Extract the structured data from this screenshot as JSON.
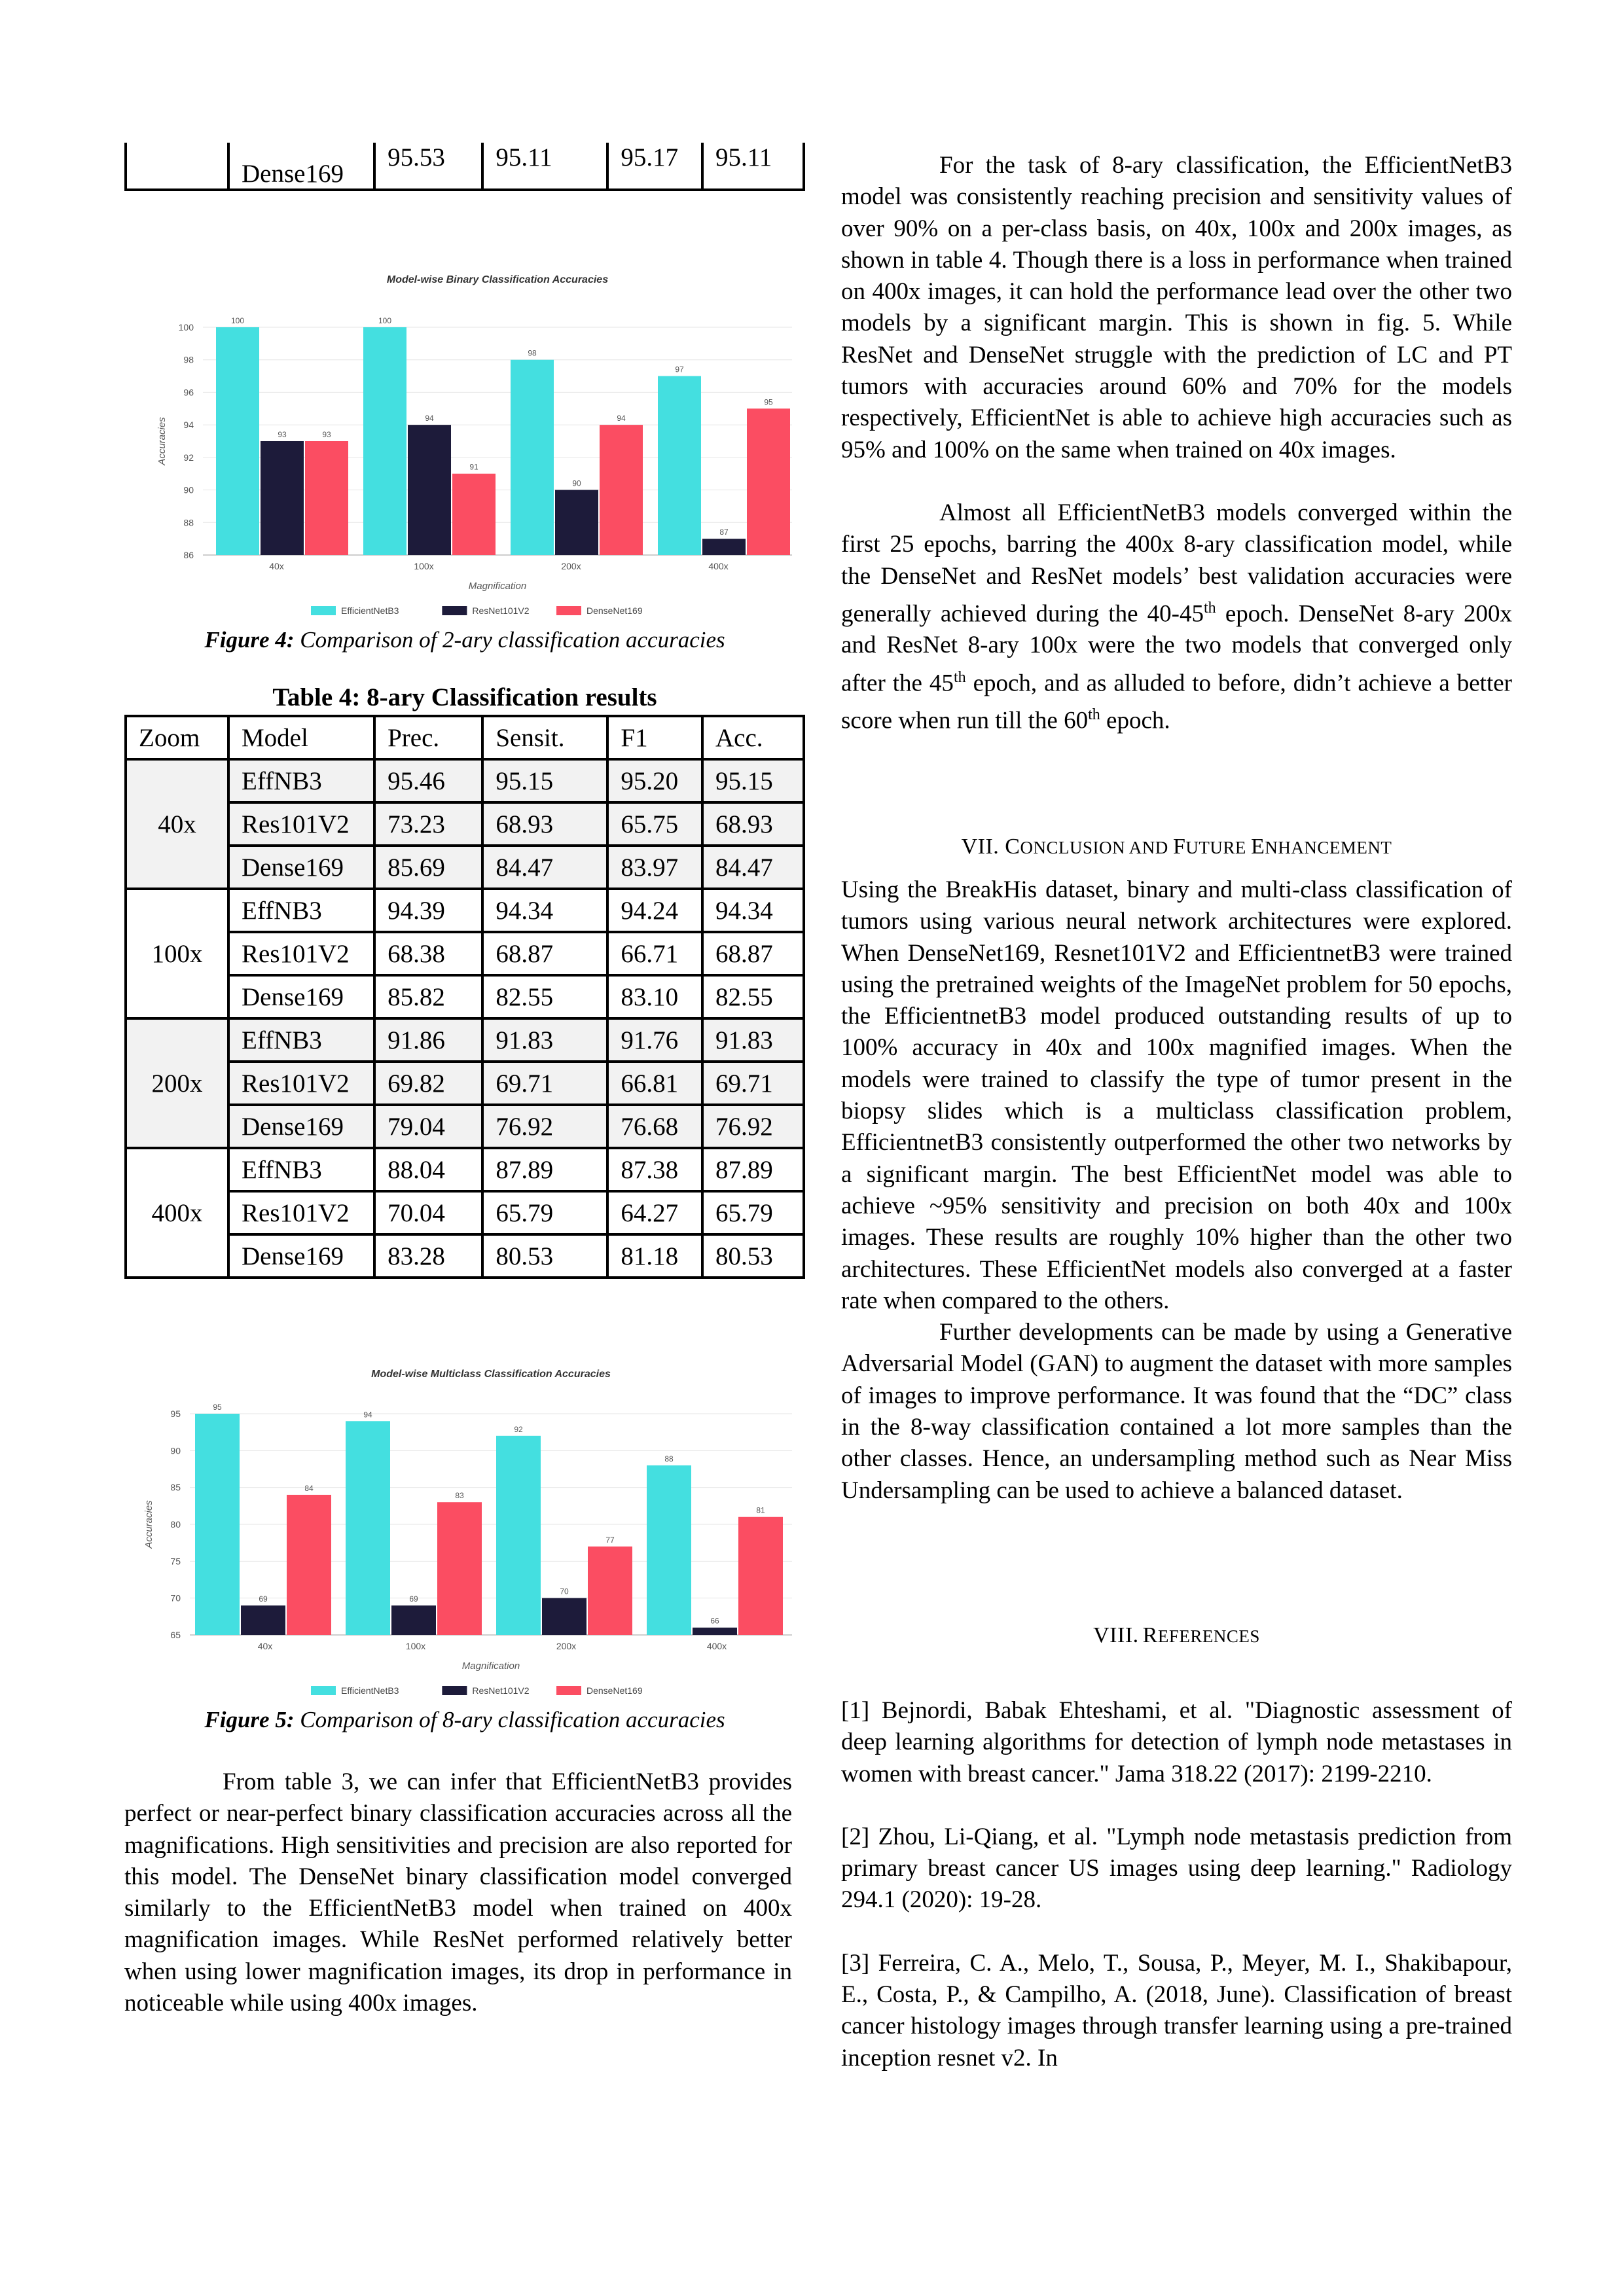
{
  "top_table_row": {
    "model": "Dense169",
    "prec": "95.53",
    "sens": "95.11",
    "f1": "95.17",
    "acc": "95.11"
  },
  "fig4_caption": {
    "label": "Figure 4:",
    "text": " Comparison of 2-ary classification accuracies"
  },
  "table4": {
    "title": "Table 4: 8-ary Classification results",
    "headers": [
      "Zoom",
      "Model",
      "Prec.",
      "Sensit.",
      "F1",
      "Acc."
    ],
    "groups": [
      {
        "zoom": "40x",
        "rows": [
          [
            "EffNB3",
            "95.46",
            "95.15",
            "95.20",
            "95.15"
          ],
          [
            "Res101V2",
            "73.23",
            "68.93",
            "65.75",
            "68.93"
          ],
          [
            "Dense169",
            "85.69",
            "84.47",
            "83.97",
            "84.47"
          ]
        ]
      },
      {
        "zoom": "100x",
        "rows": [
          [
            "EffNB3",
            "94.39",
            "94.34",
            "94.24",
            "94.34"
          ],
          [
            "Res101V2",
            "68.38",
            "68.87",
            "66.71",
            "68.87"
          ],
          [
            "Dense169",
            "85.82",
            "82.55",
            "83.10",
            "82.55"
          ]
        ]
      },
      {
        "zoom": "200x",
        "rows": [
          [
            "EffNB3",
            "91.86",
            "91.83",
            "91.76",
            "91.83"
          ],
          [
            "Res101V2",
            "69.82",
            "69.71",
            "66.81",
            "69.71"
          ],
          [
            "Dense169",
            "79.04",
            "76.92",
            "76.68",
            "76.92"
          ]
        ]
      },
      {
        "zoom": "400x",
        "rows": [
          [
            "EffNB3",
            "88.04",
            "87.89",
            "87.38",
            "87.89"
          ],
          [
            "Res101V2",
            "70.04",
            "65.79",
            "64.27",
            "65.79"
          ],
          [
            "Dense169",
            "83.28",
            "80.53",
            "81.18",
            "80.53"
          ]
        ]
      }
    ]
  },
  "fig5_caption": {
    "label": "Figure 5:",
    "text": " Comparison of 8-ary classification accuracies"
  },
  "left_paragraph": "From table 3, we can infer that EfficientNetB3 provides perfect or near-perfect binary classification accuracies across all the magnifications. High sensitivities and precision are also reported for this model. The DenseNet binary classification model converged similarly to the EfficientNetB3 model when trained on 400x magnification images. While ResNet performed relatively better when using lower magnification images, its drop in performance in noticeable while using 400x images.",
  "right_paragraphs": {
    "p1": "For the task of 8-ary classification, the EfficientNetB3 model was consistently reaching precision and sensitivity values of over 90% on a per-class basis, on 40x, 100x and 200x images, as shown in table 4. Though there is a loss in performance when trained on 400x images, it can hold the performance lead over the other two models by a significant margin. This is shown in fig. 5. While ResNet and DenseNet struggle with the prediction of LC and PT tumors with accuracies around 60% and 70% for the models respectively, EfficientNet is able to achieve high accuracies such as 95% and 100% on the same when trained on 40x images.",
    "p2_a": "Almost all EfficientNetB3 models converged within the first 25 epochs, barring the 400x 8-ary classification model, while the DenseNet and ResNet models’ best validation accuracies were generally achieved during the 40-45",
    "p2_sup1": "th",
    "p2_b": " epoch. DenseNet 8-ary 200x and ResNet 8-ary 100x were the two models that converged only after the 45",
    "p2_sup2": "th",
    "p2_c": " epoch, and as alluded to before, didn’t achieve a better score when run till the 60",
    "p2_sup3": "th",
    "p2_d": " epoch."
  },
  "section7": {
    "num": "VII. C",
    "w1": "ONCLUSION AND ",
    "f": "F",
    "w2": "UTURE ",
    "e": "E",
    "w3": "NHANCEMENT"
  },
  "conclusion_p1": "Using the BreakHis dataset, binary and multi-class classification of tumors using various neural network architectures were explored. When DenseNet169, Resnet101V2 and EfficientnetB3 were trained using the pretrained weights of the ImageNet problem for 50 epochs, the EfficientnetB3 model produced outstanding results of up to 100% accuracy in 40x and 100x magnified images. When the models were trained to classify the type of tumor present in the biopsy slides which is a multiclass classification problem, EfficientnetB3 consistently outperformed the other two networks by a significant margin. The best EfficientNet model was able to achieve ~95% sensitivity and precision on both 40x and 100x images. These results are roughly 10% higher than the other two architectures. These EfficientNet models also converged at a faster rate when compared to the others.",
  "conclusion_p2": "Further developments can be made by using a Generative Adversarial Model (GAN) to augment the dataset with more samples of images to improve performance. It was found that the “DC” class in the 8-way classification contained a lot more samples than the other classes. Hence, an undersampling method such as Near Miss Undersampling can be used to achieve a balanced dataset.",
  "section8": {
    "num": "VIII.",
    "r": "R",
    "rest": "EFERENCES"
  },
  "references": [
    "[1] Bejnordi, Babak Ehteshami, et al. \"Diagnostic assessment of deep learning algorithms for detection of lymph node metastases in women with breast cancer.\" Jama 318.22 (2017): 2199-2210.",
    "[2] Zhou, Li-Qiang, et al. \"Lymph node metastasis prediction from primary breast cancer US images using deep learning.\" Radiology 294.1 (2020): 19-28.",
    "[3] Ferreira, C. A., Melo, T., Sousa, P., Meyer, M. I., Shakibapour, E., Costa, P., & Campilho, A. (2018, June). Classification of breast cancer histology images through transfer learning using a pre-trained inception resnet v2. In"
  ],
  "colors": {
    "effnet": "#44dfe0",
    "resnet": "#1d1b3a",
    "densenet": "#fb4d62"
  },
  "chart_data": [
    {
      "type": "bar",
      "title": "Model-wise Binary Classification Accuracies",
      "xlabel": "Magnification",
      "ylabel": "Accuracies",
      "categories": [
        "40x",
        "100x",
        "200x",
        "400x"
      ],
      "series": [
        {
          "name": "EfficientNetB3",
          "values": [
            100,
            100,
            98,
            97
          ]
        },
        {
          "name": "ResNet101V2",
          "values": [
            93,
            94,
            90,
            87
          ]
        },
        {
          "name": "DenseNet169",
          "values": [
            93,
            91,
            94,
            95
          ]
        }
      ],
      "ylim": [
        86,
        100
      ],
      "yticks": [
        86,
        88,
        90,
        92,
        94,
        96,
        98,
        100
      ],
      "grid": true,
      "legend": "bottom"
    },
    {
      "type": "bar",
      "title": "Model-wise Multiclass Classification Accuracies",
      "xlabel": "Magnification",
      "ylabel": "Accuracies",
      "categories": [
        "40x",
        "100x",
        "200x",
        "400x"
      ],
      "series": [
        {
          "name": "EfficientNetB3",
          "values": [
            95,
            94,
            92,
            88
          ]
        },
        {
          "name": "ResNet101V2",
          "values": [
            69,
            69,
            70,
            66
          ]
        },
        {
          "name": "DenseNet169",
          "values": [
            84,
            83,
            77,
            81
          ]
        }
      ],
      "ylim": [
        65,
        95
      ],
      "yticks": [
        65,
        70,
        75,
        80,
        85,
        90,
        95
      ],
      "grid": true,
      "legend": "bottom"
    }
  ]
}
